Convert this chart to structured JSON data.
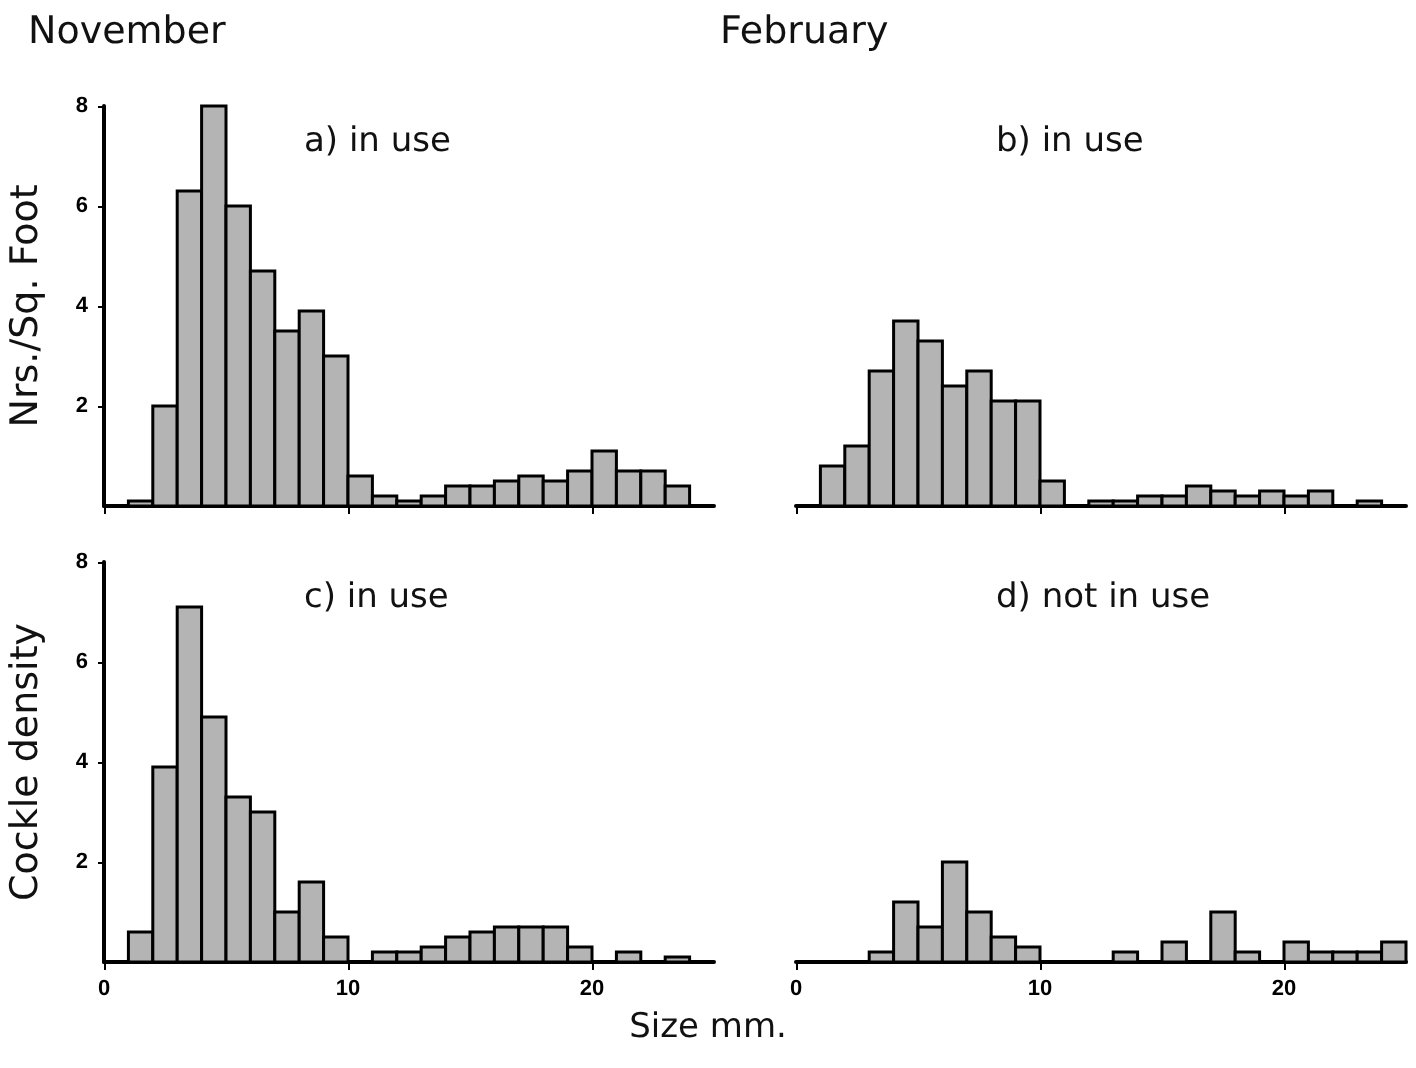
{
  "chart_data": [
    {
      "type": "histogram",
      "title": "a) in use",
      "annotations": [
        "November"
      ],
      "ylabel": "Nrs./Sq. Foot",
      "color": "#b4b4b4",
      "bins": [
        1,
        2,
        3,
        4,
        5,
        6,
        7,
        8,
        9,
        10,
        11,
        12,
        13,
        14,
        15,
        16,
        17,
        18,
        19,
        20,
        21,
        22,
        23,
        24
      ],
      "values": [
        0.1,
        2.0,
        6.3,
        8.0,
        6.0,
        4.7,
        3.5,
        3.9,
        3.0,
        0.6,
        0.2,
        0.1,
        0.2,
        0.4,
        0.4,
        0.5,
        0.6,
        0.5,
        0.7,
        1.1,
        0.7,
        0.7,
        0.4
      ],
      "xlim": [
        0,
        25
      ],
      "xticks": [
        0,
        10,
        20
      ],
      "ylim": [
        0,
        8
      ],
      "yticks": [
        2,
        4,
        6,
        8
      ],
      "tick_labels": "y",
      "grid": false
    },
    {
      "type": "histogram",
      "title": "b) in use",
      "annotations": [
        "February"
      ],
      "color": "#b4b4b4",
      "bins": [
        1,
        2,
        3,
        4,
        5,
        6,
        7,
        8,
        9,
        10,
        11,
        12,
        13,
        14,
        15,
        16,
        17,
        18,
        19,
        20,
        21,
        22,
        23,
        24
      ],
      "values": [
        0.8,
        1.2,
        2.7,
        3.7,
        3.3,
        2.4,
        2.7,
        2.1,
        2.1,
        0.5,
        null,
        0.1,
        0.1,
        0.2,
        0.2,
        0.4,
        0.3,
        0.2,
        0.3,
        0.2,
        0.3,
        null,
        0.1
      ],
      "xlim": [
        0,
        25
      ],
      "xticks": [
        0,
        10,
        20
      ],
      "ylim": [
        0,
        8
      ],
      "yticks": [
        2,
        4,
        6,
        8
      ],
      "tick_labels": false,
      "grid": false
    },
    {
      "type": "histogram",
      "title": "c) in use",
      "ylabel": "Cockle density",
      "xlabel": "Size mm.",
      "color": "#b4b4b4",
      "bins": [
        1,
        2,
        3,
        4,
        5,
        6,
        7,
        8,
        9,
        10,
        11,
        12,
        13,
        14,
        15,
        16,
        17,
        18,
        19,
        20,
        21,
        22,
        23,
        24
      ],
      "values": [
        0.6,
        3.9,
        7.1,
        4.9,
        3.3,
        3.0,
        1.0,
        1.6,
        0.5,
        null,
        0.2,
        0.2,
        0.3,
        0.5,
        0.6,
        0.7,
        0.7,
        0.7,
        0.3,
        null,
        0.2,
        null,
        0.1
      ],
      "xlim": [
        0,
        25
      ],
      "xticks": [
        0,
        10,
        20
      ],
      "ylim": [
        0,
        8
      ],
      "yticks": [
        2,
        4,
        6,
        8
      ],
      "grid": false
    },
    {
      "type": "histogram",
      "title": "d) not in use",
      "color": "#b4b4b4",
      "bins": [
        3,
        4,
        5,
        6,
        7,
        8,
        9,
        10,
        13,
        14,
        15,
        16,
        17,
        18,
        19,
        20,
        21,
        22,
        23,
        24,
        25
      ],
      "values": [
        0.2,
        1.2,
        0.7,
        2.0,
        1.0,
        0.5,
        0.3,
        null,
        0.2,
        null,
        0.4,
        null,
        1.0,
        0.2,
        null,
        0.4,
        0.2,
        0.2,
        0.2,
        0.4
      ],
      "xlim": [
        0,
        25
      ],
      "xticks": [
        0,
        10,
        20
      ],
      "ylim": [
        0,
        8
      ],
      "yticks": [
        2,
        4,
        6,
        8
      ],
      "tick_labels": "x",
      "grid": false
    }
  ]
}
